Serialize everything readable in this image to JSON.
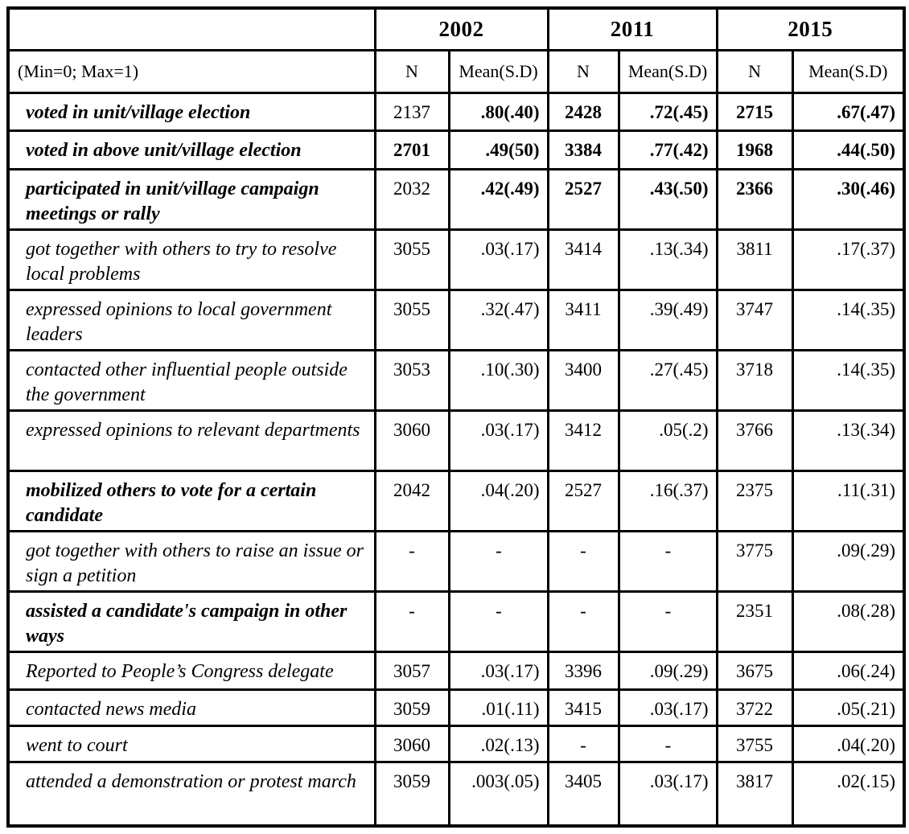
{
  "table": {
    "years": [
      "2002",
      "2011",
      "2015"
    ],
    "range_note": "(Min=0; Max=1)",
    "column_headers": [
      "N",
      "Mean(S.D)",
      "N",
      "Mean(S.D)",
      "N",
      "Mean(S.D)"
    ],
    "rows": [
      {
        "label": "voted in unit/village election",
        "bold": true,
        "values": [
          "2137",
          ".80(.40)",
          "2428",
          ".72(.45)",
          "2715",
          ".67(.47)"
        ],
        "value_bold": [
          false,
          true,
          true,
          true,
          true,
          true
        ]
      },
      {
        "label": "voted in above unit/village election",
        "bold": true,
        "values": [
          "2701",
          ".49(50)",
          "3384",
          ".77(.42)",
          "1968",
          ".44(.50)"
        ],
        "value_bold": [
          true,
          true,
          true,
          true,
          true,
          true
        ]
      },
      {
        "label": "participated in unit/village campaign meetings or rally",
        "bold": true,
        "values": [
          "2032",
          ".42(.49)",
          "2527",
          ".43(.50)",
          "2366",
          ".30(.46)"
        ],
        "value_bold": [
          false,
          true,
          true,
          true,
          true,
          true
        ]
      },
      {
        "label": "got together with others to try to resolve local problems",
        "bold": false,
        "values": [
          "3055",
          ".03(.17)",
          "3414",
          ".13(.34)",
          "3811",
          ".17(.37)"
        ],
        "value_bold": [
          false,
          false,
          false,
          false,
          false,
          false
        ]
      },
      {
        "label": "expressed opinions to local government leaders",
        "bold": false,
        "values": [
          "3055",
          ".32(.47)",
          "3411",
          ".39(.49)",
          "3747",
          ".14(.35)"
        ],
        "value_bold": [
          false,
          false,
          false,
          false,
          false,
          false
        ]
      },
      {
        "label": "contacted other influential people outside the government",
        "bold": false,
        "values": [
          "3053",
          ".10(.30)",
          "3400",
          ".27(.45)",
          "3718",
          ".14(.35)"
        ],
        "value_bold": [
          false,
          false,
          false,
          false,
          false,
          false
        ]
      },
      {
        "label": "expressed opinions to relevant departments",
        "bold": false,
        "values": [
          "3060",
          ".03(.17)",
          "3412",
          ".05(.2)",
          "3766",
          ".13(.34)"
        ],
        "value_bold": [
          false,
          false,
          false,
          false,
          false,
          false
        ]
      },
      {
        "label": "mobilized others to vote for a certain candidate",
        "bold": true,
        "values": [
          "2042",
          ".04(.20)",
          "2527",
          ".16(.37)",
          "2375",
          ".11(.31)"
        ],
        "value_bold": [
          false,
          false,
          false,
          false,
          false,
          false
        ]
      },
      {
        "label": "got together with others to raise an issue or sign a petition",
        "bold": false,
        "values": [
          "-",
          "-",
          "-",
          "-",
          "3775",
          ".09(.29)"
        ],
        "value_bold": [
          false,
          false,
          false,
          false,
          false,
          false
        ]
      },
      {
        "label": "assisted a candidate's campaign in other ways",
        "bold": true,
        "values": [
          "-",
          "-",
          "-",
          "-",
          "2351",
          ".08(.28)"
        ],
        "value_bold": [
          false,
          false,
          false,
          false,
          false,
          false
        ]
      },
      {
        "label": "Reported to People’s Congress delegate",
        "bold": false,
        "values": [
          "3057",
          ".03(.17)",
          "3396",
          ".09(.29)",
          "3675",
          ".06(.24)"
        ],
        "value_bold": [
          false,
          false,
          false,
          false,
          false,
          false
        ]
      },
      {
        "label": "contacted news media",
        "bold": false,
        "values": [
          "3059",
          ".01(.11)",
          "3415",
          ".03(.17)",
          "3722",
          ".05(.21)"
        ],
        "value_bold": [
          false,
          false,
          false,
          false,
          false,
          false
        ]
      },
      {
        "label": "went to court",
        "bold": false,
        "values": [
          "3060",
          ".02(.13)",
          "-",
          "-",
          "3755",
          ".04(.20)"
        ],
        "value_bold": [
          false,
          false,
          false,
          false,
          false,
          false
        ]
      },
      {
        "label": "attended a demonstration or protest march",
        "bold": false,
        "values": [
          "3059",
          ".003(.05)",
          "3405",
          ".03(.17)",
          "3817",
          ".02(.15)"
        ],
        "value_bold": [
          false,
          false,
          false,
          false,
          false,
          false
        ]
      }
    ]
  }
}
